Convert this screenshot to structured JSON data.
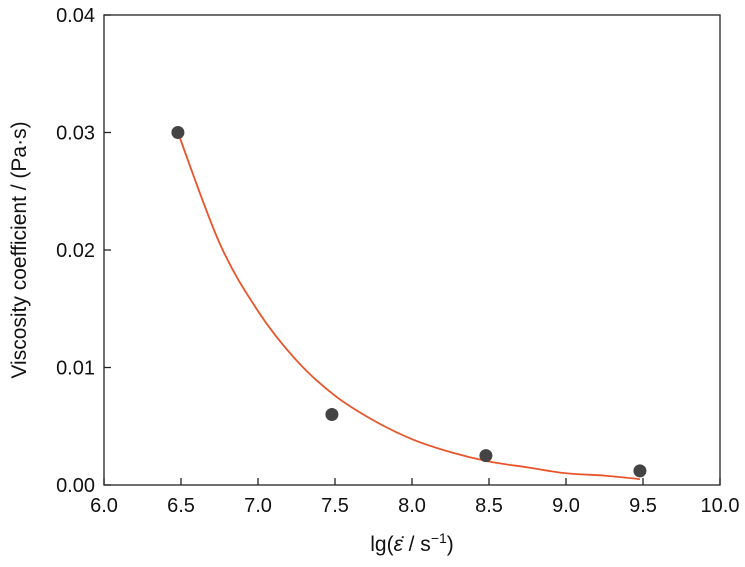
{
  "chart_data": {
    "type": "scatter",
    "title": "",
    "xlabel": "lg(ε̇ / s⁻¹)",
    "ylabel": "Viscosity coefficient / (Pa·s)",
    "xlim": [
      6.0,
      10.0
    ],
    "ylim": [
      0.0,
      0.04
    ],
    "x_ticks": [
      "6.0",
      "6.5",
      "7.0",
      "7.5",
      "8.0",
      "8.5",
      "9.0",
      "9.5",
      "10.0"
    ],
    "y_ticks": [
      "0.00",
      "0.01",
      "0.02",
      "0.03",
      "0.04"
    ],
    "grid": false,
    "legend": "none",
    "series": [
      {
        "type": "scatter",
        "color": "#444444",
        "points": [
          {
            "x": 6.48,
            "y": 0.03
          },
          {
            "x": 7.48,
            "y": 0.006
          },
          {
            "x": 8.48,
            "y": 0.0025
          },
          {
            "x": 9.48,
            "y": 0.0012
          }
        ]
      },
      {
        "type": "line",
        "color": "#e8552a",
        "fit": "exponential decay",
        "points": [
          {
            "x": 6.48,
            "y": 0.03
          },
          {
            "x": 6.75,
            "y": 0.0206
          },
          {
            "x": 7.0,
            "y": 0.0148
          },
          {
            "x": 7.25,
            "y": 0.0106
          },
          {
            "x": 7.5,
            "y": 0.0076
          },
          {
            "x": 7.75,
            "y": 0.0055
          },
          {
            "x": 8.0,
            "y": 0.0039
          },
          {
            "x": 8.25,
            "y": 0.0028
          },
          {
            "x": 8.5,
            "y": 0.002
          },
          {
            "x": 8.75,
            "y": 0.0015
          },
          {
            "x": 9.0,
            "y": 0.001
          },
          {
            "x": 9.25,
            "y": 0.0008
          },
          {
            "x": 9.48,
            "y": 0.0005
          }
        ]
      }
    ]
  }
}
